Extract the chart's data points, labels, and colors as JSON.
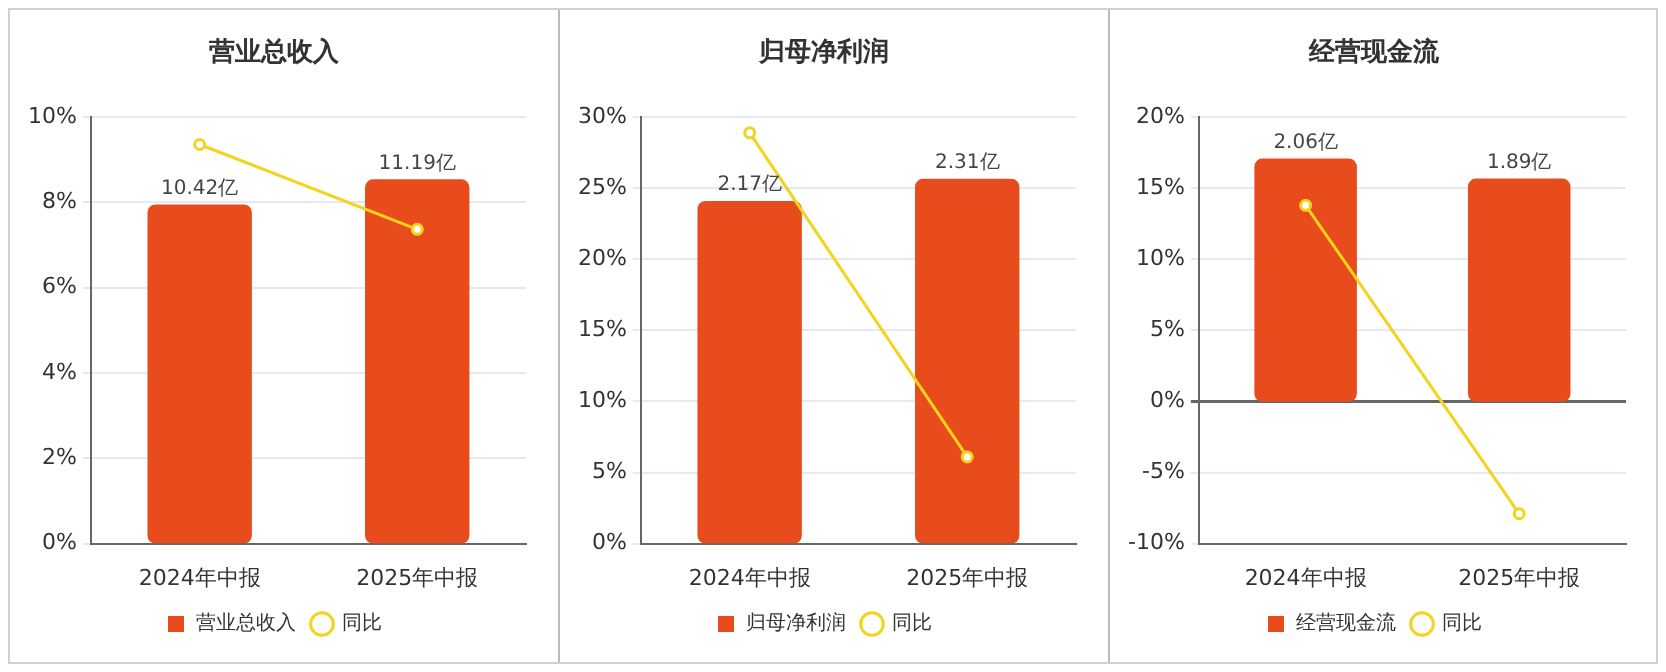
{
  "chart_data": [
    {
      "type": "bar",
      "title": "营业总收入",
      "categories": [
        "2024年中报",
        "2025年中报"
      ],
      "series": [
        {
          "name": "营业总收入",
          "axis": "y2",
          "color": "#e84c1d",
          "values": [
            10.42,
            11.19
          ],
          "value_labels": [
            "10.42亿",
            "11.19亿"
          ]
        },
        {
          "name": "同比",
          "type": "line",
          "color": "#f5d21b",
          "values": [
            9.36,
            7.37
          ]
        }
      ],
      "ylim": [
        0,
        10
      ],
      "yticks": [
        {
          "value": 0,
          "label": "0%"
        },
        {
          "value": 2,
          "label": "2%"
        },
        {
          "value": 4,
          "label": "4%"
        },
        {
          "value": 6,
          "label": "6%"
        },
        {
          "value": 8,
          "label": "8%"
        },
        {
          "value": 10,
          "label": "10%"
        }
      ],
      "y2lim": [
        0,
        13.1
      ],
      "grid": "y",
      "legend": "bottom",
      "marker": "circle"
    },
    {
      "type": "bar",
      "title": "归母净利润",
      "categories": [
        "2024年中报",
        "2025年中报"
      ],
      "series": [
        {
          "name": "归母净利润",
          "axis": "y2",
          "color": "#e84c1d",
          "values": [
            2.17,
            2.31
          ],
          "value_labels": [
            "2.17亿",
            "2.31亿"
          ]
        },
        {
          "name": "同比",
          "type": "line",
          "color": "#f5d21b",
          "values": [
            28.9,
            6.1
          ]
        }
      ],
      "ylim": [
        0,
        30
      ],
      "yticks": [
        {
          "value": 0,
          "label": "0%"
        },
        {
          "value": 5,
          "label": "5%"
        },
        {
          "value": 10,
          "label": "10%"
        },
        {
          "value": 15,
          "label": "15%"
        },
        {
          "value": 20,
          "label": "20%"
        },
        {
          "value": 25,
          "label": "25%"
        },
        {
          "value": 30,
          "label": "30%"
        }
      ],
      "y2lim": [
        0,
        2.7
      ],
      "grid": "y",
      "legend": "bottom",
      "marker": "circle"
    },
    {
      "type": "bar",
      "title": "经营现金流",
      "categories": [
        "2024年中报",
        "2025年中报"
      ],
      "series": [
        {
          "name": "经营现金流",
          "axis": "y2",
          "color": "#e84c1d",
          "values": [
            2.06,
            1.89
          ],
          "value_labels": [
            "2.06亿",
            "1.89亿"
          ]
        },
        {
          "name": "同比",
          "type": "line",
          "color": "#f5d21b",
          "values": [
            13.8,
            -7.9
          ]
        }
      ],
      "ylim": [
        -10,
        20
      ],
      "yticks": [
        {
          "value": -10,
          "label": "-10%"
        },
        {
          "value": -5,
          "label": "-5%"
        },
        {
          "value": 0,
          "label": "0%"
        },
        {
          "value": 5,
          "label": "5%"
        },
        {
          "value": 10,
          "label": "10%"
        },
        {
          "value": 15,
          "label": "15%"
        },
        {
          "value": 20,
          "label": "20%"
        }
      ],
      "y2lim": [
        -1.2,
        2.41
      ],
      "grid": "y",
      "legend": "bottom",
      "marker": "circle"
    }
  ]
}
